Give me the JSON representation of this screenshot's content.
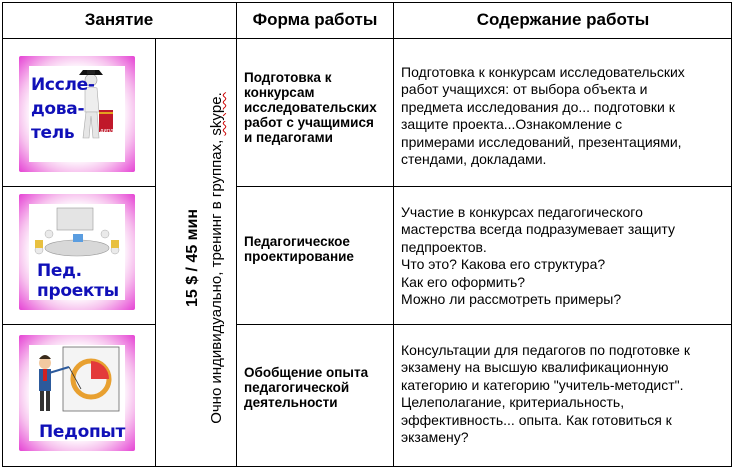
{
  "header": {
    "col1": "Занятие",
    "col2": "Форма работы",
    "col3": "Содержание работы"
  },
  "side_text": {
    "price": "15 $ / 45 мин",
    "mode_prefix": "Очно индивидуально, тренинг в группах,",
    "mode_skype": "skype."
  },
  "rows": [
    {
      "card_lines": [
        "Иссле-",
        "дова-",
        "тель"
      ],
      "card_sign": "диплом",
      "form_lines": [
        "Подготовка к",
        "конкурсам",
        "исследовательских",
        "работ с учащимися",
        "и педагогами"
      ],
      "content_lines": [
        "Подготовка к конкурсам исследовательских",
        "работ учащихся: от выбора объекта и",
        "предмета исследования до... подготовки к",
        "защите проекта...Ознакомление с",
        "примерами исследований, презентациями,",
        "стендами, докладами."
      ]
    },
    {
      "card_lines": [
        "Пед.",
        "проекты"
      ],
      "form_lines": [
        "Педагогическое",
        "проектирование"
      ],
      "content_lines": [
        "Участие в конкурсах педагогического",
        "мастерства всегда подразумевает защиту",
        "педпроектов.",
        "Что это? Какова его структура?",
        "Как его оформить?",
        "Можно ли рассмотреть примеры?"
      ]
    },
    {
      "card_lines": [
        "Педопыт"
      ],
      "form_lines": [
        "Обобщение опыта",
        "педагогической",
        "деятельности"
      ],
      "content_lines": [
        "Консультации для педагогов по подготовке к",
        "экзамену на высшую квалификационную",
        "категорию и категорию \"учитель-методист\".",
        "Целеполагание, критериальность,",
        "эффективность... опыта. Как готовиться к",
        "экзамену?"
      ]
    }
  ],
  "colors": {
    "card_label": "#1010b8",
    "card_frame": "#e542d4",
    "border": "#000000"
  },
  "icons": [
    "graduate-figure-icon",
    "meeting-table-icon",
    "presenter-chart-icon"
  ]
}
